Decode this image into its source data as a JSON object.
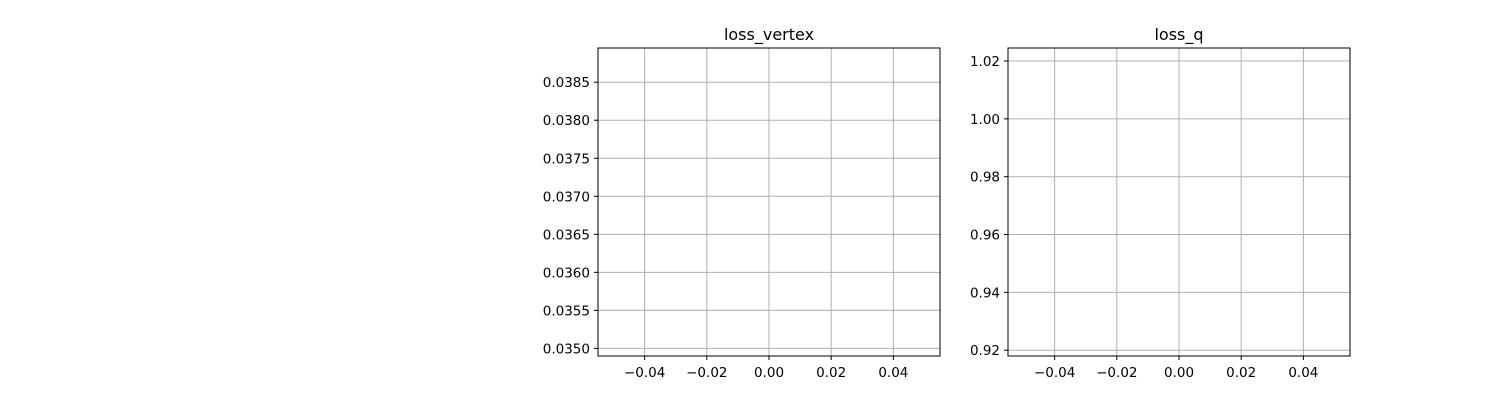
{
  "chart_data": [
    {
      "type": "line",
      "title": "loss_vertex",
      "xlabel": "",
      "ylabel": "",
      "xlim": [
        -0.055,
        0.055
      ],
      "ylim": [
        0.0349,
        0.03895
      ],
      "x_ticks": [
        -0.04,
        -0.02,
        0.0,
        0.02,
        0.04
      ],
      "x_tick_labels": [
        "−0.04",
        "−0.02",
        "0.00",
        "0.02",
        "0.04"
      ],
      "y_ticks": [
        0.035,
        0.0355,
        0.036,
        0.0365,
        0.037,
        0.0375,
        0.038,
        0.0385
      ],
      "y_tick_labels": [
        "0.0350",
        "0.0355",
        "0.0360",
        "0.0365",
        "0.0370",
        "0.0375",
        "0.0380",
        "0.0385"
      ],
      "grid": true,
      "series": []
    },
    {
      "type": "line",
      "title": "loss_q",
      "xlabel": "",
      "ylabel": "",
      "xlim": [
        -0.055,
        0.055
      ],
      "ylim": [
        0.918,
        1.0245
      ],
      "x_ticks": [
        -0.04,
        -0.02,
        0.0,
        0.02,
        0.04
      ],
      "x_tick_labels": [
        "−0.04",
        "−0.02",
        "0.00",
        "0.02",
        "0.04"
      ],
      "y_ticks": [
        0.92,
        0.94,
        0.96,
        0.98,
        1.0,
        1.02
      ],
      "y_tick_labels": [
        "0.92",
        "0.94",
        "0.96",
        "0.98",
        "1.00",
        "1.02"
      ],
      "grid": true,
      "series": []
    }
  ]
}
